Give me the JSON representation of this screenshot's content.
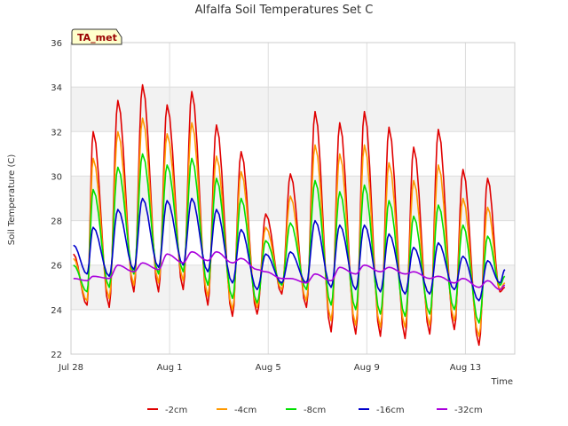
{
  "chart_data": {
    "type": "line",
    "title": "Alfalfa Soil Temperatures Set C",
    "xlabel": "Time",
    "ylabel": "Soil Temperature (C)",
    "ylim": [
      22,
      36
    ],
    "xlim": [
      0,
      18
    ],
    "yticks": [
      22,
      24,
      26,
      28,
      30,
      32,
      34,
      36
    ],
    "xticks": [
      {
        "value": 0,
        "label": "Jul 28"
      },
      {
        "value": 4,
        "label": "Aug 1"
      },
      {
        "value": 8,
        "label": "Aug 5"
      },
      {
        "value": 12,
        "label": "Aug 9"
      },
      {
        "value": 16,
        "label": "Aug 13"
      }
    ],
    "grid": true,
    "legend_position": "bottom",
    "annotation": "TA_met",
    "background_bands": [
      [
        24,
        26
      ],
      [
        28,
        30
      ],
      [
        32,
        34
      ]
    ],
    "peak_days": [
      0.1,
      0.9,
      1.9,
      2.9,
      3.9,
      4.9,
      5.9,
      6.9,
      7.9,
      8.9,
      9.9,
      10.9,
      11.9,
      12.9,
      13.9,
      14.9,
      15.9,
      16.9,
      17.6
    ],
    "series": [
      {
        "name": "-2cm",
        "color": "#e00000",
        "maxima": [
          26.5,
          32.0,
          33.4,
          34.1,
          33.2,
          33.8,
          32.3,
          31.1,
          28.3,
          30.1,
          32.9,
          32.4,
          32.9,
          32.2,
          31.3,
          32.1,
          30.3,
          29.9,
          25.0
        ],
        "minima": [
          24.2,
          24.1,
          24.8,
          24.8,
          24.9,
          24.2,
          23.7,
          23.8,
          24.7,
          24.1,
          23.0,
          22.9,
          22.8,
          22.7,
          22.9,
          23.1,
          22.4,
          24.8
        ]
      },
      {
        "name": "-4cm",
        "color": "#ff9900",
        "maxima": [
          26.3,
          30.8,
          32.0,
          32.6,
          31.9,
          32.4,
          30.9,
          30.2,
          27.7,
          29.1,
          31.4,
          31.0,
          31.4,
          30.6,
          29.8,
          30.5,
          29.0,
          28.6,
          25.2
        ],
        "minima": [
          24.4,
          24.5,
          25.1,
          25.2,
          25.3,
          24.6,
          24.0,
          24.1,
          24.9,
          24.4,
          23.5,
          23.3,
          23.2,
          23.2,
          23.3,
          23.5,
          22.8,
          24.9
        ]
      },
      {
        "name": "-8cm",
        "color": "#00e000",
        "maxima": [
          26.0,
          29.4,
          30.4,
          31.0,
          30.5,
          30.8,
          29.9,
          29.0,
          27.1,
          27.9,
          29.8,
          29.3,
          29.6,
          28.9,
          28.2,
          28.7,
          27.8,
          27.3,
          25.5
        ],
        "minima": [
          24.8,
          25.0,
          25.6,
          25.6,
          25.7,
          25.1,
          24.5,
          24.3,
          25.1,
          24.9,
          24.2,
          24.0,
          23.8,
          23.7,
          23.8,
          24.0,
          23.4,
          25.1
        ]
      },
      {
        "name": "-16cm",
        "color": "#0000cc",
        "maxima": [
          26.9,
          27.7,
          28.5,
          29.0,
          28.9,
          29.0,
          28.5,
          27.6,
          26.5,
          26.6,
          28.0,
          27.8,
          27.8,
          27.4,
          26.8,
          27.0,
          26.4,
          26.2,
          25.8
        ],
        "minima": [
          25.6,
          25.5,
          25.8,
          25.9,
          26.0,
          25.7,
          25.2,
          24.9,
          25.2,
          25.2,
          25.0,
          24.9,
          24.8,
          24.7,
          24.7,
          24.9,
          24.4,
          25.2
        ]
      },
      {
        "name": "-32cm",
        "color": "#aa00dd",
        "maxima": [
          25.4,
          25.5,
          26.0,
          26.1,
          26.5,
          26.6,
          26.6,
          26.3,
          25.7,
          25.4,
          25.6,
          25.9,
          26.0,
          25.9,
          25.7,
          25.5,
          25.4,
          25.3,
          25.1
        ],
        "minima": [
          25.3,
          25.4,
          25.7,
          25.8,
          26.1,
          26.2,
          26.1,
          25.8,
          25.4,
          25.2,
          25.3,
          25.6,
          25.7,
          25.6,
          25.4,
          25.2,
          25.0,
          24.9
        ]
      }
    ]
  }
}
